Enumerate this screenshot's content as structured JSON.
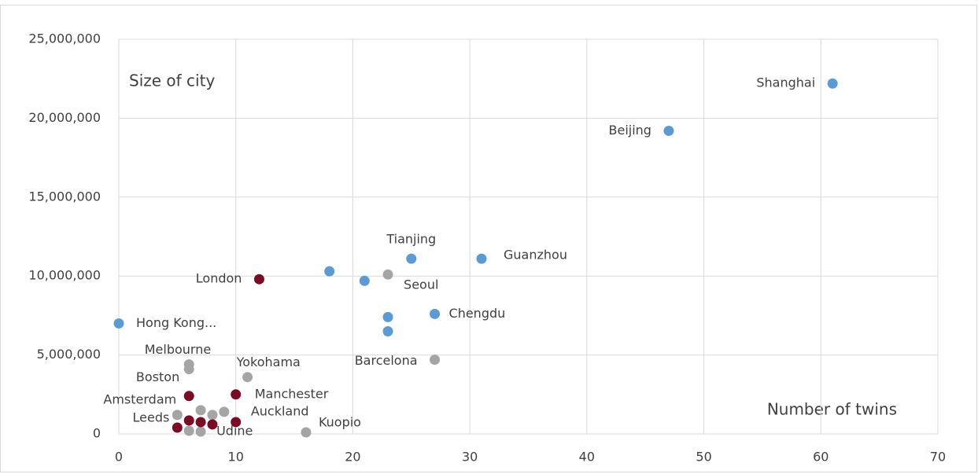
{
  "chart_data": {
    "type": "scatter",
    "ylabel": "Size of city",
    "xlabel": "Number of twins",
    "xlim": [
      0,
      70
    ],
    "xticks": [
      0,
      10,
      20,
      30,
      40,
      50,
      60,
      70
    ],
    "ylim": [
      0,
      25000000
    ],
    "yticks": [
      {
        "value": 0,
        "label": "0"
      },
      {
        "value": 5000000,
        "label": "5,000,000"
      },
      {
        "value": 10000000,
        "label": "10,000,000"
      },
      {
        "value": 15000000,
        "label": "15,000,000"
      },
      {
        "value": 20000000,
        "label": "20,000,000"
      },
      {
        "value": 25000000,
        "label": "25,000,000"
      }
    ],
    "grid": true,
    "series": [
      {
        "color": "#5b9bd5",
        "x": [
          0,
          18,
          21,
          25,
          31,
          23,
          23,
          27,
          47,
          61
        ],
        "values": [
          7000000,
          10300000,
          9700000,
          11100000,
          11100000,
          7400000,
          6500000,
          7600000,
          19200000,
          22200000
        ],
        "labels": [
          "Hong Kong...",
          null,
          null,
          "Tianjing",
          "Guanzhou",
          null,
          null,
          "Chengdu",
          "Beijing",
          "Shanghai"
        ]
      },
      {
        "color": "#a5a5a5",
        "x": [
          23,
          27,
          6,
          6,
          11,
          16,
          9,
          5,
          7,
          8,
          6,
          7
        ],
        "values": [
          10100000,
          4700000,
          4400000,
          4100000,
          3600000,
          100000,
          1400000,
          1200000,
          1500000,
          1200000,
          200000,
          150000
        ],
        "labels": [
          "Seoul",
          "Barcelona",
          "Melbourne",
          "Boston",
          "Yokohama",
          "Kuopio",
          "Auckland",
          null,
          null,
          null,
          null,
          "Udine"
        ]
      },
      {
        "color": "#7b0a24",
        "x": [
          12,
          6,
          10,
          5,
          6,
          7,
          8,
          10
        ],
        "values": [
          9800000,
          2400000,
          2500000,
          400000,
          850000,
          750000,
          600000,
          750000
        ],
        "labels": [
          "London",
          "Amsterdam",
          "Manchester",
          "Leeds",
          null,
          null,
          null,
          null
        ]
      }
    ]
  }
}
